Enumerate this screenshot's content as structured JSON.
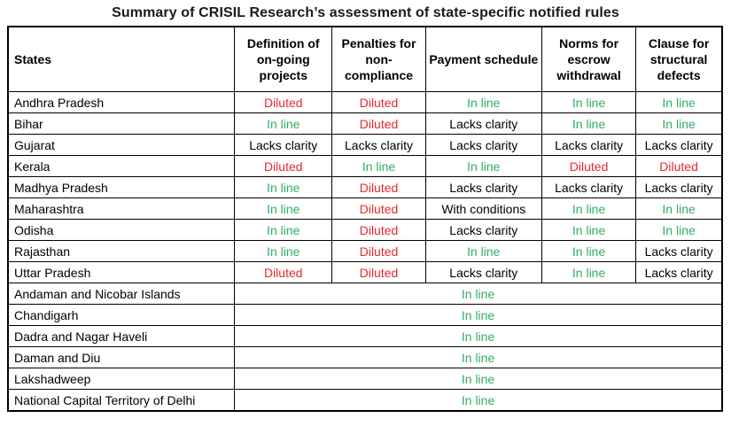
{
  "title": "Summary of CRISIL Research’s assessment of state-specific notified rules",
  "value_colors": {
    "In line": "#2fae62",
    "Diluted": "#e8282e",
    "default": "#000000"
  },
  "chart_data": {
    "type": "table",
    "title": "Summary of CRISIL Research’s assessment of state-specific notified rules",
    "state_column_header": "States",
    "columns": [
      "Definition of on-going projects",
      "Penalties for non-compliance",
      "Payment schedule",
      "Norms for escrow withdrawal",
      "Clause for structural defects"
    ],
    "rows": [
      {
        "state": "Andhra Pradesh",
        "values": [
          "Diluted",
          "Diluted",
          "In line",
          "In line",
          "In line"
        ]
      },
      {
        "state": "Bihar",
        "values": [
          "In line",
          "Diluted",
          "Lacks clarity",
          "In line",
          "In line"
        ]
      },
      {
        "state": "Gujarat",
        "values": [
          "Lacks clarity",
          "Lacks clarity",
          "Lacks clarity",
          "Lacks clarity",
          "Lacks clarity"
        ]
      },
      {
        "state": "Kerala",
        "values": [
          "Diluted",
          "In line",
          "In line",
          "Diluted",
          "Diluted"
        ]
      },
      {
        "state": "Madhya Pradesh",
        "values": [
          "In line",
          "Diluted",
          "Lacks clarity",
          "Lacks clarity",
          "Lacks clarity"
        ]
      },
      {
        "state": "Maharashtra",
        "values": [
          "In line",
          "Diluted",
          "With conditions",
          "In line",
          "In line"
        ]
      },
      {
        "state": "Odisha",
        "values": [
          "In line",
          "Diluted",
          "Lacks clarity",
          "In line",
          "In line"
        ]
      },
      {
        "state": "Rajasthan",
        "values": [
          "In line",
          "Diluted",
          "In line",
          "In line",
          "Lacks clarity"
        ]
      },
      {
        "state": "Uttar Pradesh",
        "values": [
          "Diluted",
          "Diluted",
          "Lacks clarity",
          "In line",
          "Lacks clarity"
        ]
      }
    ],
    "merged_rows": [
      {
        "state": "Andaman and Nicobar Islands",
        "value": "In line"
      },
      {
        "state": "Chandigarh",
        "value": "In line"
      },
      {
        "state": "Dadra and Nagar Haveli",
        "value": "In line"
      },
      {
        "state": "Daman and Diu",
        "value": "In line"
      },
      {
        "state": "Lakshadweep",
        "value": "In line"
      },
      {
        "state": "National Capital Territory of Delhi",
        "value": "In line"
      }
    ]
  }
}
